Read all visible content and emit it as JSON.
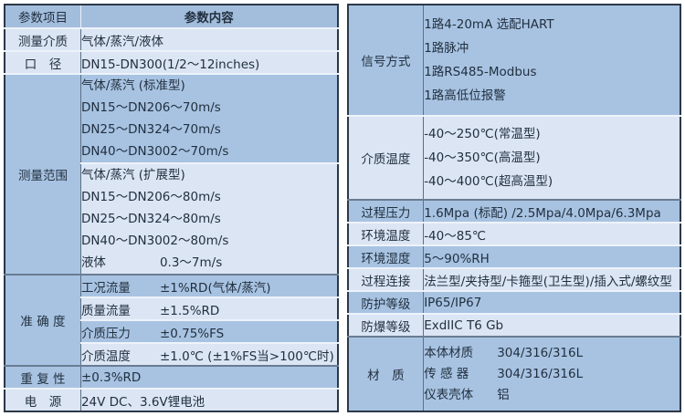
{
  "colors": {
    "row_medium_blue": "#a8c3e2",
    "row_light_blue": "#dbe5f4",
    "header_blue": "#a3bddd",
    "outer_border": "#2b3847",
    "group_divider": "#697c92",
    "text": "#22303f"
  },
  "left_table": {
    "header": {
      "param_item": "参数项目",
      "param_content": "参数内容"
    },
    "medium": {
      "label": "测量介质",
      "value": "气体/蒸汽/液体"
    },
    "diameter": {
      "label": "口　径",
      "value": "DN15-DN300(1/2～12inches)"
    },
    "range": {
      "label": "测量范围",
      "standard_title": "气体/蒸汽 (标准型)",
      "standard": [
        {
          "k": "DN15～DN20",
          "v": "6～70m/s"
        },
        {
          "k": "DN25～DN32",
          "v": "4～70m/s"
        },
        {
          "k": "DN40～DN300",
          "v": "2～70m/s"
        }
      ],
      "extended_title": "气体/蒸汽 (扩展型)",
      "extended": [
        {
          "k": "DN15～DN20",
          "v": "6～80m/s"
        },
        {
          "k": "DN25～DN32",
          "v": "4～80m/s"
        },
        {
          "k": "DN40～DN300",
          "v": "2～80m/s"
        }
      ],
      "liquid": {
        "k": "液体",
        "v": "0.3～7m/s"
      }
    },
    "accuracy": {
      "label": "准 确 度",
      "rows": [
        {
          "k": "工况流量",
          "v": "±1%RD(气体/蒸汽)"
        },
        {
          "k": "质量流量",
          "v": "±1.5%RD"
        },
        {
          "k": "介质压力",
          "v": "±0.75%FS"
        },
        {
          "k": "介质温度",
          "v": "±1.0℃ (±1%FS当>100℃时)"
        }
      ]
    },
    "repeatability": {
      "label": "重 复 性",
      "value": "±0.3%RD"
    },
    "power": {
      "label": "电　源",
      "value": "24V DC、3.6V锂电池"
    }
  },
  "right_table": {
    "signal": {
      "label": "信号方式",
      "lines": [
        "1路4-20mA 选配HART",
        "1路脉冲",
        "1路RS485-Modbus",
        "1路高低位报警"
      ]
    },
    "media_temp": {
      "label": "介质温度",
      "lines": [
        "-40～250℃(常温型)",
        "-40～350℃(高温型)",
        "-40～400℃(超高温型)"
      ]
    },
    "process_pressure": {
      "label": "过程压力",
      "value": "1.6Mpa (标配) /2.5Mpa/4.0Mpa/6.3Mpa"
    },
    "ambient_temp": {
      "label": "环境温度",
      "value": "-40～85℃"
    },
    "ambient_humidity": {
      "label": "环境湿度",
      "value": "5～90%RH"
    },
    "process_connection": {
      "label": "过程连接",
      "value": "法兰型/夹持型/卡箍型(卫生型)/插入式/螺纹型"
    },
    "protection_rating": {
      "label": "防护等级",
      "value": "IP65/IP67"
    },
    "explosion_rating": {
      "label": "防爆等级",
      "value": "ExdIIC T6 Gb"
    },
    "material": {
      "label": "材　质",
      "rows": [
        {
          "k": "本体材质",
          "v": "304/316/316L"
        },
        {
          "k": "传 感 器",
          "v": "304/316/316L"
        },
        {
          "k": "仪表壳体",
          "v": "铝"
        }
      ]
    }
  }
}
